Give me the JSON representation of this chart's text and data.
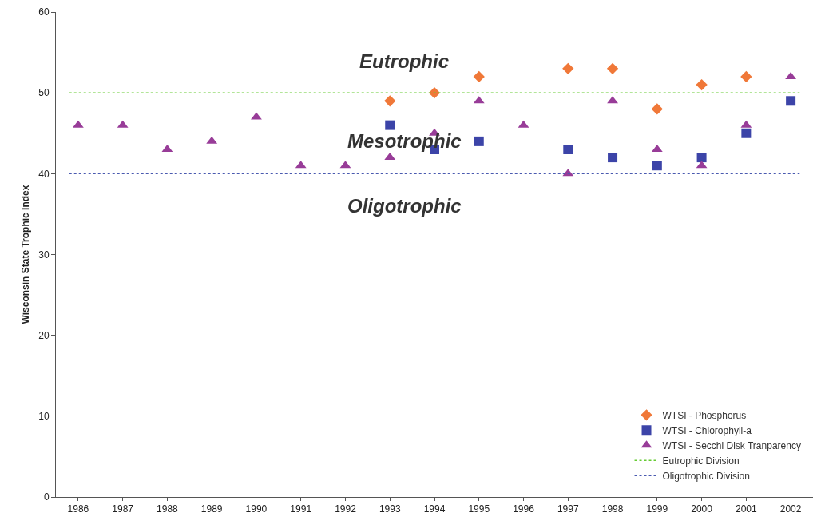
{
  "chart_data": {
    "type": "scatter",
    "ylabel": "Wisconsin State Trophic Index",
    "categories": [
      "1986",
      "1987",
      "1988",
      "1989",
      "1990",
      "1991",
      "1992",
      "1993",
      "1994",
      "1995",
      "1996",
      "1997",
      "1998",
      "1999",
      "2000",
      "2001",
      "2002"
    ],
    "series": [
      {
        "name": "WTSI - Phosphorus",
        "color": "#f07838",
        "marker": "diamond",
        "values": [
          null,
          null,
          null,
          null,
          null,
          null,
          null,
          49,
          50,
          52,
          null,
          53,
          53,
          48,
          51,
          52,
          null
        ]
      },
      {
        "name": "WTSI - Chlorophyll-a",
        "color": "#3c44a8",
        "marker": "square",
        "values": [
          null,
          null,
          null,
          null,
          null,
          null,
          null,
          46,
          43,
          44,
          null,
          43,
          42,
          41,
          42,
          45,
          49
        ]
      },
      {
        "name": "WTSI - Secchi Disk Tranparency",
        "color": "#983c98",
        "marker": "triangle",
        "values": [
          46,
          46,
          43,
          44,
          47,
          41,
          41,
          42,
          45,
          49,
          46,
          40,
          49,
          43,
          41,
          46,
          52
        ]
      }
    ],
    "ref_lines": [
      {
        "axis": "y",
        "value": 50,
        "label": "Eutrophic Division",
        "color": "#66cc33",
        "line_style": "dotted"
      },
      {
        "axis": "y",
        "value": 40,
        "label": "Oligotrophic Division",
        "color": "#4a5ab0",
        "line_style": "dotted"
      }
    ],
    "annotations": [
      "Eutrophic",
      "Mesotrophic",
      "Oligotrophic"
    ],
    "ylim": [
      0,
      60
    ],
    "yticks": [
      0,
      10,
      20,
      30,
      40,
      50,
      60
    ],
    "grid": false,
    "legend": "bottom right"
  }
}
